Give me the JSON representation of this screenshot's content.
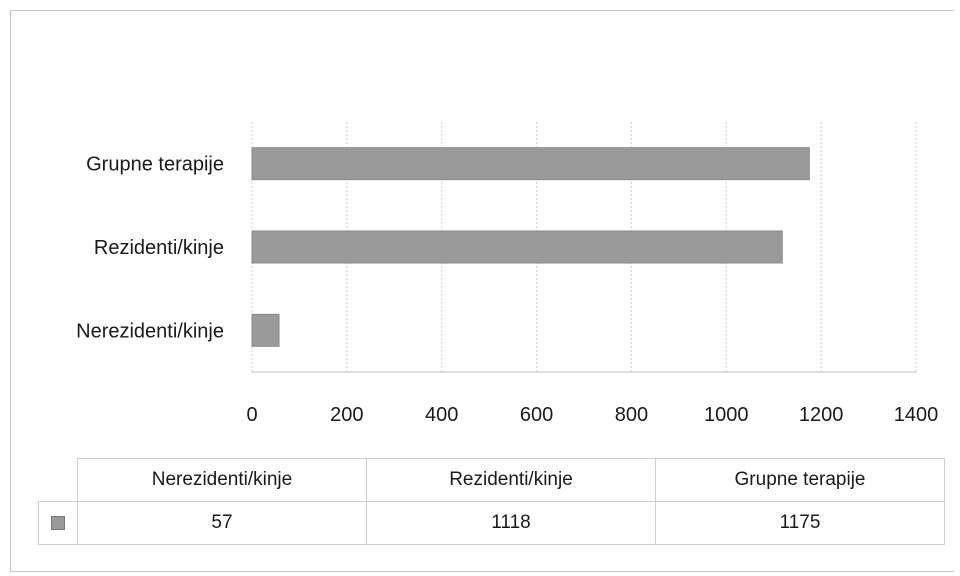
{
  "chart_data": {
    "type": "bar",
    "orientation": "horizontal",
    "categories": [
      "Grupne terapije",
      "Rezidenti/kinje",
      "Nerezidenti/kinje"
    ],
    "values": [
      1175,
      1118,
      57
    ],
    "xlim": [
      0,
      1400
    ],
    "x_ticks": [
      "0",
      "200",
      "400",
      "600",
      "800",
      "1000",
      "1200",
      "1400"
    ],
    "grid": true,
    "bar_color": "#9a9a9a",
    "table": {
      "headers": [
        "Nerezidenti/kinje",
        "Rezidenti/kinje",
        "Grupne terapije"
      ],
      "values": [
        "57",
        "1118",
        "1175"
      ]
    }
  }
}
